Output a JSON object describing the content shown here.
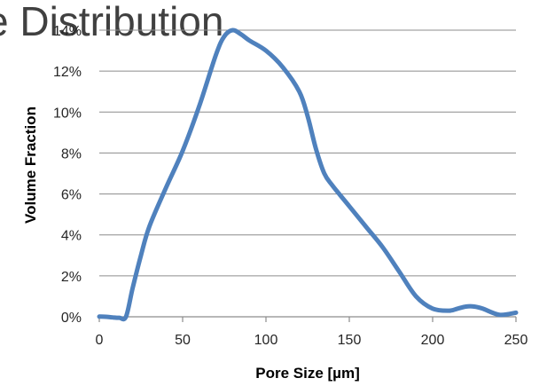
{
  "background_title_fragment": "e Distribution",
  "chart_data": {
    "type": "line",
    "xlabel": "Pore Size [µm]",
    "ylabel": "Volume Fraction",
    "xlim": [
      0,
      250
    ],
    "ylim": [
      0,
      0.14
    ],
    "x_ticks": [
      0,
      50,
      100,
      150,
      200,
      250
    ],
    "y_ticks": [
      0,
      0.02,
      0.04,
      0.06,
      0.08,
      0.1,
      0.12,
      0.14
    ],
    "x_tick_labels": [
      "0",
      "50",
      "100",
      "150",
      "200",
      "250"
    ],
    "y_tick_labels": [
      "0%",
      "2%",
      "4%",
      "6%",
      "8%",
      "10%",
      "12%",
      "14%"
    ],
    "grid": "horizontal",
    "series": [
      {
        "color": "#4F81BD",
        "x": [
          0,
          4,
          8,
          12,
          16,
          20,
          25,
          30,
          40,
          50,
          60,
          70,
          75,
          80,
          85,
          90,
          100,
          110,
          120,
          125,
          130,
          135,
          140,
          150,
          160,
          170,
          180,
          190,
          200,
          210,
          215,
          220,
          225,
          230,
          240,
          250
        ],
        "y": [
          0.0001,
          0,
          -0.0003,
          -0.0005,
          0,
          0.014,
          0.03,
          0.044,
          0.063,
          0.081,
          0.103,
          0.128,
          0.137,
          0.14,
          0.138,
          0.135,
          0.13,
          0.122,
          0.11,
          0.098,
          0.082,
          0.07,
          0.064,
          0.054,
          0.044,
          0.034,
          0.022,
          0.01,
          0.004,
          0.003,
          0.004,
          0.005,
          0.005,
          0.004,
          0.001,
          0.002
        ]
      }
    ]
  },
  "colors": {
    "gridline": "#8c8c8c",
    "series": "#4F81BD",
    "text": "#262626"
  }
}
